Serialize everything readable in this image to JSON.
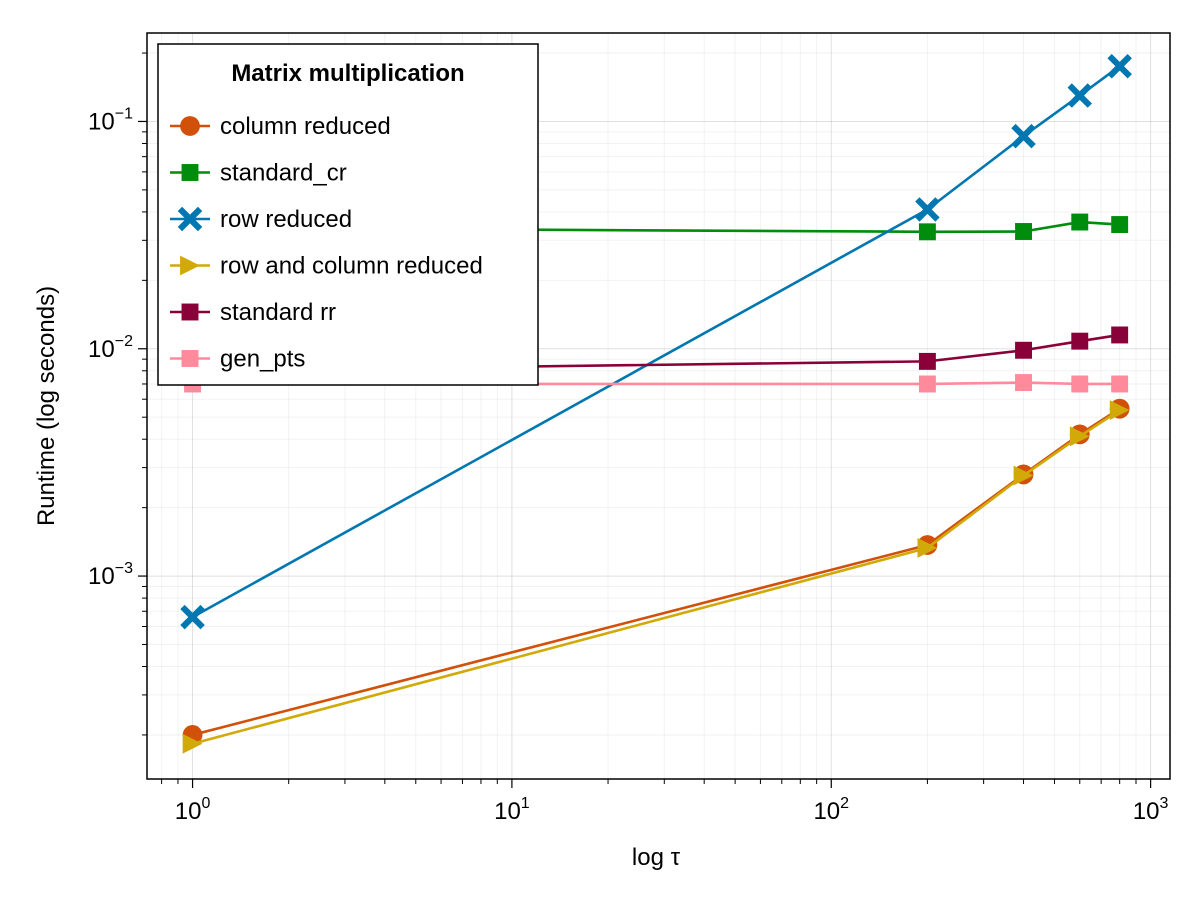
{
  "chart_data": {
    "type": "line",
    "xscale": "log",
    "yscale": "log",
    "xlabel": "log τ",
    "ylabel": "Runtime (log seconds)",
    "xlim": [
      0.72,
      1150
    ],
    "ylim": [
      0.000128,
      0.245
    ],
    "grid": true,
    "x_ticks": [
      {
        "value": 1,
        "base": "10",
        "exp": "0"
      },
      {
        "value": 10,
        "base": "10",
        "exp": "1"
      },
      {
        "value": 100,
        "base": "10",
        "exp": "2"
      },
      {
        "value": 1000,
        "base": "10",
        "exp": "3"
      }
    ],
    "y_ticks": [
      {
        "value": 0.001,
        "base": "10",
        "exp": "−3"
      },
      {
        "value": 0.01,
        "base": "10",
        "exp": "−2"
      },
      {
        "value": 0.1,
        "base": "10",
        "exp": "−1"
      }
    ],
    "legend": {
      "title": "Matrix multiplication",
      "placement": "top-left"
    },
    "series": [
      {
        "name": "column reduced",
        "color": "#d1510a",
        "marker": "circle",
        "x": [
          1,
          200,
          400,
          600,
          800
        ],
        "y": [
          0.0002,
          0.00137,
          0.0028,
          0.0042,
          0.00545
        ]
      },
      {
        "name": "standard_cr",
        "color": "#008c0c",
        "marker": "square",
        "x": [
          1,
          200,
          400,
          600,
          800
        ],
        "y": [
          0.034,
          0.0327,
          0.0328,
          0.0361,
          0.0352
        ]
      },
      {
        "name": "row reduced",
        "color": "#0077b0",
        "marker": "cross",
        "x": [
          1,
          200,
          400,
          600,
          800
        ],
        "y": [
          0.00066,
          0.041,
          0.0862,
          0.13,
          0.175
        ]
      },
      {
        "name": "row and column reduced",
        "color": "#d1a908",
        "marker": "triangle-right",
        "x": [
          1,
          200,
          400,
          600,
          800
        ],
        "y": [
          0.000183,
          0.00133,
          0.00277,
          0.00412,
          0.00537
        ]
      },
      {
        "name": "standard rr",
        "color": "#8a0038",
        "marker": "square",
        "x": [
          1,
          200,
          400,
          600,
          800
        ],
        "y": [
          0.008,
          0.0088,
          0.00985,
          0.0108,
          0.0115
        ]
      },
      {
        "name": "gen_pts",
        "color": "#ff8a9b",
        "marker": "square",
        "x": [
          1,
          200,
          400,
          600,
          800
        ],
        "y": [
          0.007,
          0.007,
          0.0071,
          0.007,
          0.007
        ]
      }
    ]
  }
}
